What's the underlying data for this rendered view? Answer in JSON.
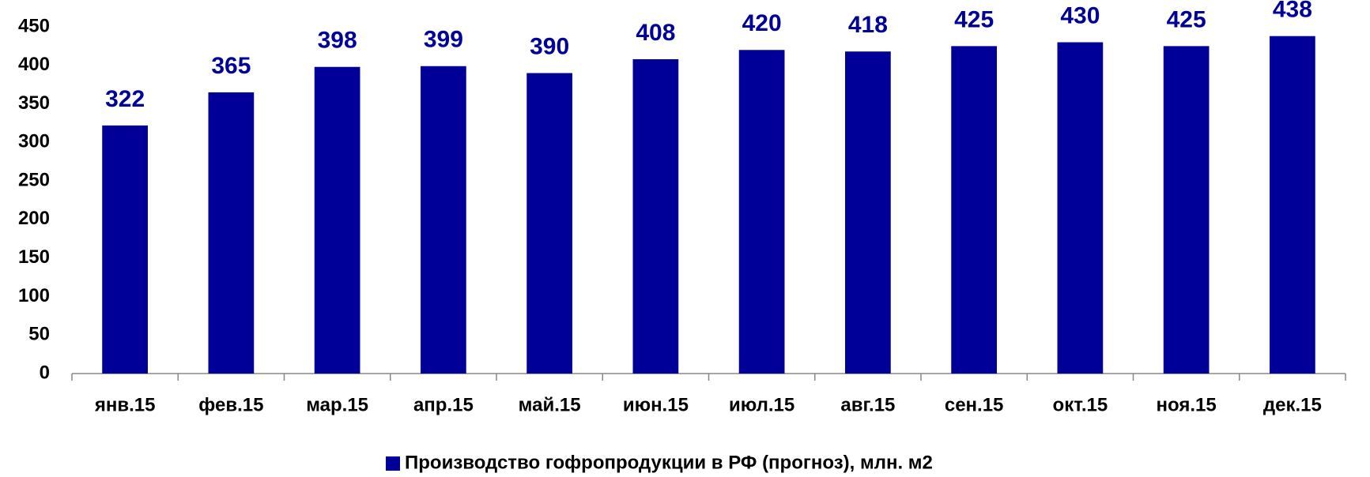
{
  "chart_data": {
    "type": "bar",
    "categories": [
      "янв.15",
      "фев.15",
      "мар.15",
      "апр.15",
      "май.15",
      "июн.15",
      "июл.15",
      "авг.15",
      "сен.15",
      "окт.15",
      "ноя.15",
      "дек.15"
    ],
    "series": [
      {
        "name": "Производство гофропродукции в РФ (прогноз), млн. м2",
        "color": "#000099",
        "values": [
          322,
          365,
          398,
          399,
          390,
          408,
          420,
          418,
          425,
          430,
          425,
          438
        ]
      }
    ],
    "ylim": [
      0,
      450
    ],
    "yticks": [
      0,
      50,
      100,
      150,
      200,
      250,
      300,
      350,
      400,
      450
    ],
    "grid": false,
    "legend": "bottom"
  }
}
